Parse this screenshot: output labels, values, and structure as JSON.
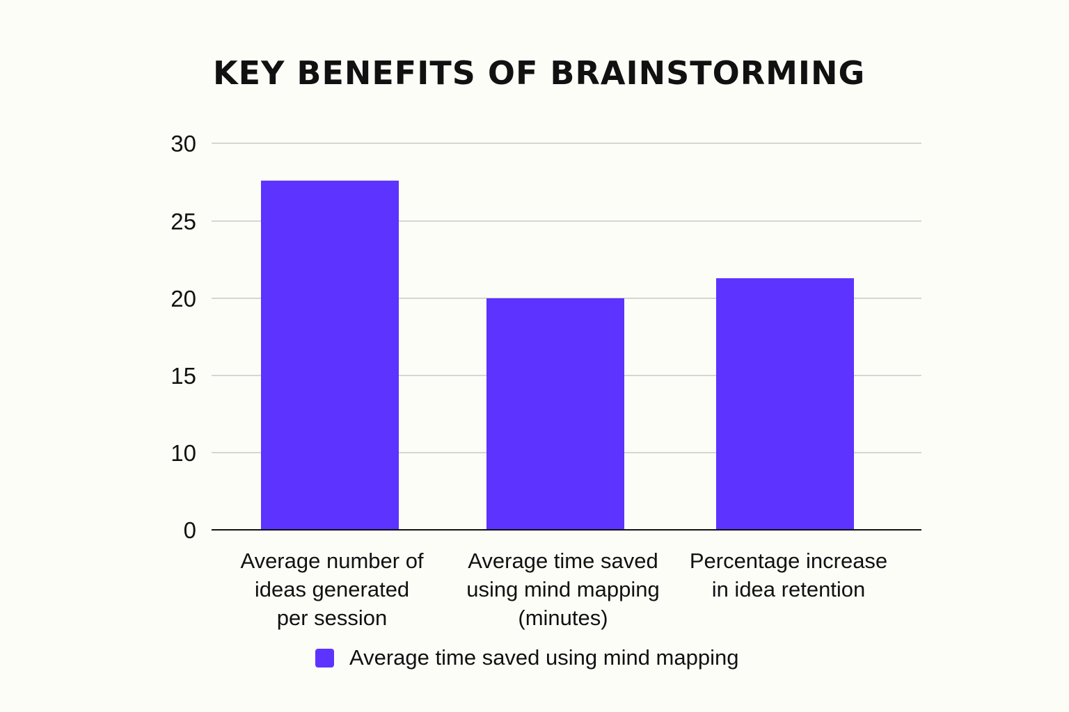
{
  "chart_data": {
    "type": "bar",
    "title": "KEY BENEFITS OF BRAINSTORMING",
    "xlabel": "",
    "ylabel": "",
    "categories": [
      [
        "Average number of",
        "ideas generated",
        "per session"
      ],
      [
        "Average time saved",
        "using mind mapping",
        "(minutes)"
      ],
      [
        "Percentage increase",
        "in idea retention"
      ]
    ],
    "series": [
      {
        "name": "Average time saved using mind mapping",
        "values": [
          27.6,
          20,
          21.3
        ]
      }
    ],
    "y_ticks": [
      "0",
      "10",
      "15",
      "20",
      "25",
      "30"
    ],
    "ylim": [
      5,
      30
    ],
    "grid": true,
    "legend": "bottom",
    "colors": {
      "bar": "#5c33ff",
      "grid": "#c8c8c8",
      "axis": "#111111"
    }
  }
}
